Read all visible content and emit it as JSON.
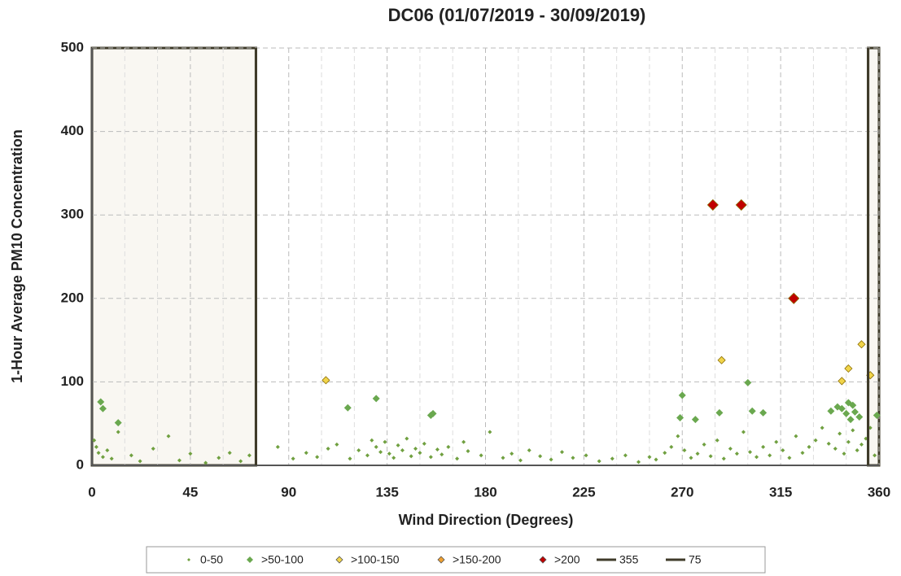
{
  "chart_data": {
    "type": "scatter",
    "title": "DC06 (01/07/2019 - 30/09/2019)",
    "x_label": "Wind Direction (Degrees)",
    "y_label": "1-Hour Average PM10 Concentration",
    "xlim": [
      0,
      360
    ],
    "xticks": [
      0,
      45,
      90,
      135,
      180,
      225,
      270,
      315,
      360
    ],
    "ylim": [
      0,
      500
    ],
    "yticks": [
      0,
      100,
      200,
      300,
      400,
      500
    ],
    "grid": true,
    "legend": "bottom",
    "series": [
      {
        "name": "0-50",
        "color": "#70a040",
        "x": [
          1,
          2,
          3,
          5,
          7,
          9,
          12,
          18,
          22,
          28,
          35,
          40,
          45,
          52,
          58,
          63,
          68,
          72,
          85,
          92,
          98,
          103,
          108,
          112,
          118,
          122,
          126,
          128,
          130,
          132,
          134,
          136,
          138,
          140,
          142,
          144,
          146,
          148,
          150,
          152,
          155,
          158,
          160,
          163,
          167,
          170,
          172,
          178,
          182,
          188,
          192,
          196,
          200,
          205,
          210,
          215,
          220,
          226,
          232,
          238,
          244,
          250,
          255,
          258,
          262,
          265,
          268,
          271,
          274,
          277,
          280,
          283,
          286,
          289,
          292,
          295,
          298,
          301,
          304,
          307,
          310,
          313,
          316,
          319,
          322,
          325,
          328,
          331,
          334,
          337,
          340,
          342,
          344,
          346,
          348,
          350,
          352,
          354,
          356,
          358
        ],
        "values": [
          30,
          22,
          15,
          10,
          18,
          8,
          40,
          12,
          5,
          20,
          35,
          6,
          14,
          3,
          9,
          15,
          5,
          12,
          22,
          8,
          15,
          10,
          20,
          25,
          8,
          18,
          12,
          30,
          22,
          16,
          28,
          14,
          9,
          24,
          18,
          32,
          11,
          20,
          15,
          26,
          10,
          19,
          13,
          22,
          8,
          28,
          17,
          12,
          40,
          9,
          14,
          6,
          18,
          11,
          7,
          16,
          9,
          12,
          5,
          8,
          12,
          4,
          10,
          7,
          15,
          22,
          35,
          18,
          9,
          14,
          25,
          11,
          30,
          8,
          20,
          14,
          40,
          16,
          10,
          22,
          12,
          28,
          18,
          9,
          35,
          15,
          22,
          30,
          45,
          26,
          20,
          38,
          14,
          28,
          42,
          18,
          25,
          32,
          45,
          12
        ]
      },
      {
        "name": ">50-100",
        "color": "#6aa84f",
        "x": [
          4,
          5,
          12,
          117,
          130,
          155,
          156,
          270,
          269,
          276,
          300,
          302,
          307,
          287,
          338,
          341,
          343,
          346,
          345,
          348,
          349,
          347,
          351,
          359
        ],
        "values": [
          76,
          68,
          51,
          69,
          80,
          60,
          62,
          84,
          57,
          55,
          99,
          65,
          63,
          63,
          65,
          70,
          68,
          75,
          62,
          72,
          64,
          55,
          58,
          60
        ]
      },
      {
        "name": ">100-150",
        "color": "#f1d44a",
        "x": [
          107,
          288,
          352,
          346,
          343,
          356
        ],
        "values": [
          102,
          126,
          145,
          116,
          101,
          108
        ]
      },
      {
        "name": ">150-200",
        "color": "#f0a030",
        "x": [],
        "values": []
      },
      {
        "name": ">200",
        "color": "#c00000",
        "x": [
          284,
          297,
          321
        ],
        "values": [
          312,
          312,
          200
        ]
      },
      {
        "name": "355",
        "color": "#3f3b2a",
        "mode": "line",
        "x": [
          355,
          355
        ],
        "values": [
          0,
          500
        ]
      },
      {
        "name": "75",
        "color": "#3f3b2a",
        "mode": "line",
        "x": [
          75,
          75
        ],
        "values": [
          0,
          500
        ]
      }
    ]
  }
}
